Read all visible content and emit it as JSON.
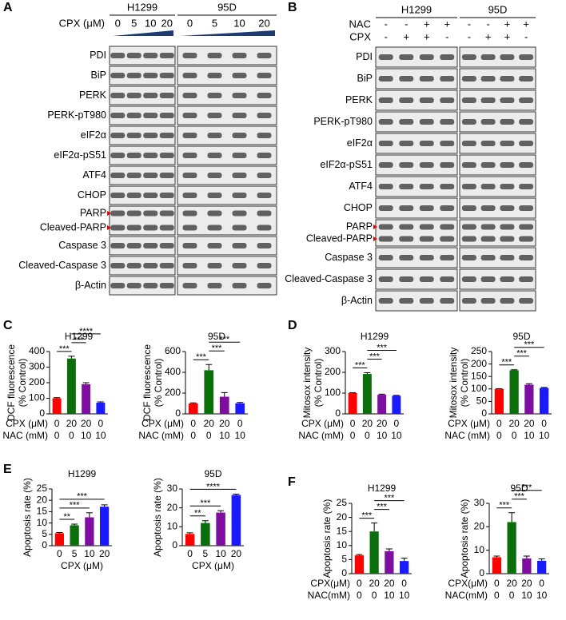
{
  "panel_labels": [
    "A",
    "B",
    "C",
    "D",
    "E",
    "F"
  ],
  "blots": [
    {
      "groups": [
        "H1299",
        "95D"
      ],
      "treatments": [
        {
          "name": "CPX (μM)",
          "values": [
            "0",
            "5",
            "10",
            "20",
            "0",
            "5",
            "10",
            "20"
          ]
        }
      ],
      "rows": [
        [
          "PDI"
        ],
        [
          "BiP"
        ],
        [
          "PERK"
        ],
        [
          "PERK-pT980"
        ],
        [
          "eIF2α"
        ],
        [
          "eIF2α-pS51"
        ],
        [
          "ATF4"
        ],
        [
          "CHOP"
        ],
        [
          "PARP",
          "Cleaved-PARP"
        ],
        [
          "Caspase 3"
        ],
        [
          "Cleaved-Caspase 3"
        ],
        [
          "β-Actin"
        ]
      ]
    },
    {
      "groups": [
        "H1299",
        "95D"
      ],
      "treatments": [
        {
          "name": "NAC",
          "values": [
            "-",
            "-",
            "+",
            "+",
            "-",
            "-",
            "+",
            "+"
          ]
        },
        {
          "name": "CPX",
          "values": [
            "-",
            "+",
            "+",
            "-",
            "-",
            "+",
            "+",
            "-"
          ]
        }
      ],
      "rows": [
        [
          "PDI"
        ],
        [
          "BiP"
        ],
        [
          "PERK"
        ],
        [
          "PERK-pT980"
        ],
        [
          "eIF2α"
        ],
        [
          "eIF2α-pS51"
        ],
        [
          "ATF4"
        ],
        [
          "CHOP"
        ],
        [
          "PARP",
          "Cleaved-PARP"
        ],
        [
          "Caspase 3"
        ],
        [
          "Cleaved-Caspase 3"
        ],
        [
          "β-Actin"
        ]
      ]
    }
  ],
  "chart_data": [
    {
      "type": "bar",
      "title": "H1299",
      "ylabel": [
        "DCF fluorescence",
        "(% Control)"
      ],
      "category_rows": [
        "CPX (μM)",
        "NAC (mM)"
      ],
      "categories": [
        [
          "0",
          "0"
        ],
        [
          "20",
          "0"
        ],
        [
          "20",
          "10"
        ],
        [
          "0",
          "10"
        ]
      ],
      "values": [
        100,
        355,
        190,
        72
      ],
      "errors": [
        4,
        15,
        10,
        5
      ],
      "colors": [
        "#ff0000",
        "#0a6e0a",
        "#7d0ea0",
        "#1a1aff"
      ],
      "ylim": [
        0,
        400
      ],
      "yticks": [
        0,
        100,
        200,
        300,
        400
      ],
      "significance": [
        {
          "from": 0,
          "to": 1,
          "label": "***"
        },
        {
          "from": 1,
          "to": 2,
          "label": "***"
        },
        {
          "from": 1,
          "to": 3,
          "label": "****"
        }
      ]
    },
    {
      "type": "bar",
      "title": "95D",
      "ylabel": [
        "DCF fluorescence",
        "(% Control)"
      ],
      "category_rows": [
        "CPX (μM)",
        "NAC (mM)"
      ],
      "categories": [
        [
          "0",
          "0"
        ],
        [
          "20",
          "0"
        ],
        [
          "20",
          "10"
        ],
        [
          "0",
          "10"
        ]
      ],
      "values": [
        100,
        420,
        165,
        102
      ],
      "errors": [
        6,
        55,
        40,
        8
      ],
      "colors": [
        "#ff0000",
        "#0a6e0a",
        "#7d0ea0",
        "#1a1aff"
      ],
      "ylim": [
        0,
        600
      ],
      "yticks": [
        0,
        200,
        400,
        600
      ],
      "significance": [
        {
          "from": 0,
          "to": 1,
          "label": "***"
        },
        {
          "from": 1,
          "to": 2,
          "label": "***"
        },
        {
          "from": 1,
          "to": 3,
          "label": "***"
        }
      ]
    },
    {
      "type": "bar",
      "title": "H1299",
      "ylabel": [
        "Mitosox intensity",
        "(% Control)"
      ],
      "category_rows": [
        "CPX (μM)",
        "NAC (mM)"
      ],
      "categories": [
        [
          "0",
          "0"
        ],
        [
          "20",
          "0"
        ],
        [
          "20",
          "10"
        ],
        [
          "0",
          "10"
        ]
      ],
      "values": [
        100,
        192,
        92,
        87
      ],
      "errors": [
        2,
        6,
        3,
        2
      ],
      "colors": [
        "#ff0000",
        "#0a6e0a",
        "#7d0ea0",
        "#1a1aff"
      ],
      "ylim": [
        0,
        300
      ],
      "yticks": [
        0,
        100,
        200,
        300
      ],
      "significance": [
        {
          "from": 0,
          "to": 1,
          "label": "***"
        },
        {
          "from": 1,
          "to": 2,
          "label": "***"
        },
        {
          "from": 1,
          "to": 3,
          "label": "***"
        }
      ]
    },
    {
      "type": "bar",
      "title": "95D",
      "ylabel": [
        "Mitosox intensity",
        "(% Control)"
      ],
      "category_rows": [
        "CPX (μM)",
        "NAC (mM)"
      ],
      "categories": [
        [
          "0",
          "0"
        ],
        [
          "20",
          "0"
        ],
        [
          "20",
          "10"
        ],
        [
          "0",
          "10"
        ]
      ],
      "values": [
        100,
        175,
        117,
        104
      ],
      "errors": [
        1,
        2,
        4,
        2
      ],
      "colors": [
        "#ff0000",
        "#0a6e0a",
        "#7d0ea0",
        "#1a1aff"
      ],
      "ylim": [
        0,
        250
      ],
      "yticks": [
        0,
        50,
        100,
        150,
        200,
        250
      ],
      "significance": [
        {
          "from": 0,
          "to": 1,
          "label": "***"
        },
        {
          "from": 1,
          "to": 2,
          "label": "***"
        },
        {
          "from": 1,
          "to": 3,
          "label": "***"
        }
      ]
    },
    {
      "type": "bar",
      "title": "H1299",
      "ylabel": [
        "Apoptosis rate (%)"
      ],
      "xlabel": "CPX (μM)",
      "categories": [
        "0",
        "5",
        "10",
        "20"
      ],
      "values": [
        5.5,
        9,
        12.5,
        17.2
      ],
      "errors": [
        0.3,
        0.5,
        2,
        0.8
      ],
      "colors": [
        "#ff0000",
        "#0a6e0a",
        "#7d0ea0",
        "#1a1aff"
      ],
      "ylim": [
        0,
        25
      ],
      "yticks": [
        0,
        5,
        10,
        15,
        20,
        25
      ],
      "significance": [
        {
          "from": 0,
          "to": 1,
          "label": "**"
        },
        {
          "from": 0,
          "to": 2,
          "label": "***"
        },
        {
          "from": 0,
          "to": 3,
          "label": "***"
        }
      ]
    },
    {
      "type": "bar",
      "title": "95D",
      "ylabel": [
        "Apoptosis rate (%)"
      ],
      "xlabel": "CPX (μM)",
      "categories": [
        "0",
        "5",
        "10",
        "20"
      ],
      "values": [
        6.2,
        12,
        17.5,
        26.8
      ],
      "errors": [
        0.6,
        1.2,
        1,
        0.5
      ],
      "colors": [
        "#ff0000",
        "#0a6e0a",
        "#7d0ea0",
        "#1a1aff"
      ],
      "ylim": [
        0,
        30
      ],
      "yticks": [
        0,
        10,
        20,
        30
      ],
      "significance": [
        {
          "from": 0,
          "to": 1,
          "label": "**"
        },
        {
          "from": 0,
          "to": 2,
          "label": "***"
        },
        {
          "from": 0,
          "to": 3,
          "label": "****"
        }
      ]
    },
    {
      "type": "bar",
      "title": "H1299",
      "ylabel": [
        "Apoptosis rate (%)"
      ],
      "category_rows": [
        "CPX(μM)",
        "NAC(mM)"
      ],
      "categories": [
        [
          "0",
          "0"
        ],
        [
          "20",
          "0"
        ],
        [
          "20",
          "10"
        ],
        [
          "0",
          "10"
        ]
      ],
      "values": [
        6.5,
        15,
        8,
        4.5
      ],
      "errors": [
        0.3,
        3,
        0.8,
        1
      ],
      "colors": [
        "#ff0000",
        "#0a6e0a",
        "#7d0ea0",
        "#1a1aff"
      ],
      "ylim": [
        0,
        25
      ],
      "yticks": [
        0,
        5,
        10,
        15,
        20,
        25
      ],
      "significance": [
        {
          "from": 0,
          "to": 1,
          "label": "***"
        },
        {
          "from": 1,
          "to": 2,
          "label": "***"
        },
        {
          "from": 1,
          "to": 3,
          "label": "***"
        }
      ]
    },
    {
      "type": "bar",
      "title": "95D",
      "ylabel": [
        "Apoptosis rate (%)"
      ],
      "category_rows": [
        "CPX(μM)",
        "NAC(mM)"
      ],
      "categories": [
        [
          "0",
          "0"
        ],
        [
          "20",
          "0"
        ],
        [
          "20",
          "10"
        ],
        [
          "0",
          "10"
        ]
      ],
      "values": [
        7,
        22,
        6.5,
        5.5
      ],
      "errors": [
        0.5,
        4,
        1,
        0.8
      ],
      "colors": [
        "#ff0000",
        "#0a6e0a",
        "#7d0ea0",
        "#1a1aff"
      ],
      "ylim": [
        0,
        30
      ],
      "yticks": [
        0,
        10,
        20,
        30
      ],
      "significance": [
        {
          "from": 0,
          "to": 1,
          "label": "***"
        },
        {
          "from": 1,
          "to": 2,
          "label": "***"
        },
        {
          "from": 1,
          "to": 3,
          "label": "***"
        }
      ]
    }
  ]
}
